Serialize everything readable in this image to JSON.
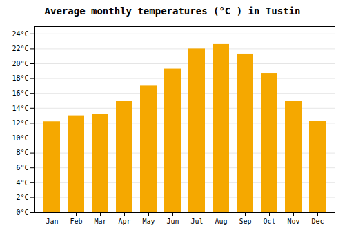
{
  "chart_data": {
    "type": "bar",
    "title": "Average monthly temperatures (°C ) in Tustin",
    "categories": [
      "Jan",
      "Feb",
      "Mar",
      "Apr",
      "May",
      "Jun",
      "Jul",
      "Aug",
      "Sep",
      "Oct",
      "Nov",
      "Dec"
    ],
    "values": [
      12.2,
      13.0,
      13.2,
      15.0,
      17.0,
      19.3,
      22.0,
      22.6,
      21.3,
      18.7,
      15.0,
      12.3
    ],
    "color": "#F5A800",
    "ylim": [
      0,
      25
    ],
    "yticks": [
      {
        "value": 0,
        "label": "0°C"
      },
      {
        "value": 2,
        "label": "2°C"
      },
      {
        "value": 4,
        "label": "4°C"
      },
      {
        "value": 6,
        "label": "6°C"
      },
      {
        "value": 8,
        "label": "8°C"
      },
      {
        "value": 10,
        "label": "10°C"
      },
      {
        "value": 12,
        "label": "12°C"
      },
      {
        "value": 14,
        "label": "14°C"
      },
      {
        "value": 16,
        "label": "16°C"
      },
      {
        "value": 18,
        "label": "18°C"
      },
      {
        "value": 20,
        "label": "20°C"
      },
      {
        "value": 22,
        "label": "22°C"
      },
      {
        "value": 24,
        "label": "24°C"
      }
    ],
    "grid": true
  }
}
